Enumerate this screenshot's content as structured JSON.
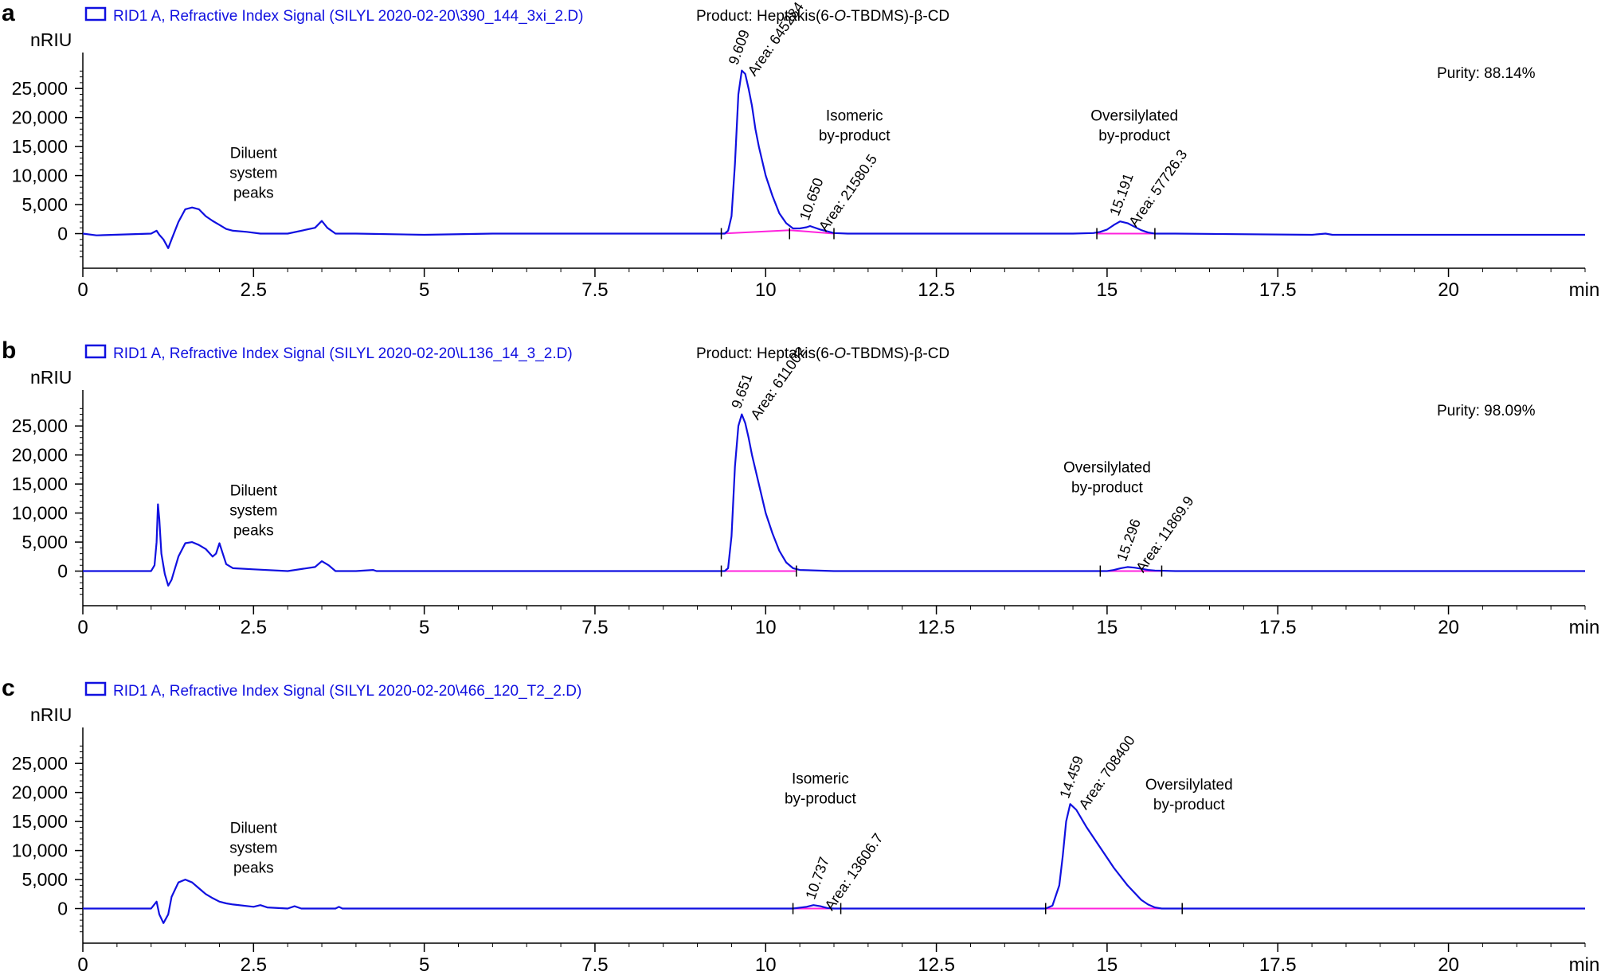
{
  "colors": {
    "signal": "#1010e0",
    "baseline": "#ff22dd",
    "axis": "#000000",
    "text": "#000000"
  },
  "chart_data": [
    {
      "type": "line",
      "panel_label": "a",
      "legend": "RID1 A, Refractive Index Signal (SILYL 2020-02-20\\390_144_3xi_2.D)",
      "product_prefix": "Product: Heptakis(6-",
      "product_italic": "O",
      "product_suffix": "-TBDMS)-β-CD",
      "purity": "Purity: 88.14%",
      "ylabel": "nRIU",
      "xunit": "min",
      "xlim": [
        0,
        22
      ],
      "ylim": [
        -5000,
        29000
      ],
      "xticks": [
        "0",
        "2.5",
        "5",
        "7.5",
        "10",
        "12.5",
        "15",
        "17.5",
        "20"
      ],
      "yticks": [
        "0",
        "5,000",
        "10,000",
        "15,000",
        "20,000",
        "25,000"
      ],
      "notes": [
        {
          "lines": [
            "Diluent",
            "system",
            "peaks"
          ],
          "x": 2.5,
          "y": 13000
        },
        {
          "lines": [
            "Isomeric",
            "by-product"
          ],
          "x": 11.3,
          "y": 19500
        },
        {
          "lines": [
            "Oversilylated",
            "by-product"
          ],
          "x": 15.4,
          "y": 19500
        }
      ],
      "peaks": [
        {
          "rt": "9.609",
          "area": "Area: 645284",
          "x": 9.609,
          "y": 28100
        },
        {
          "rt": "10.650",
          "area": "Area: 21580.5",
          "x": 10.65,
          "y": 1300
        },
        {
          "rt": "15.191",
          "area": "Area: 57726.3",
          "x": 15.191,
          "y": 2100
        }
      ],
      "baselines": [
        {
          "x": [
            9.35,
            10.35,
            11.0
          ],
          "y": [
            0,
            600,
            0
          ]
        },
        {
          "x": [
            14.85,
            15.7
          ],
          "y": [
            0,
            0
          ]
        }
      ],
      "integration_marks": [
        9.35,
        10.35,
        11.0,
        14.85,
        15.7
      ],
      "series": [
        {
          "x": [
            0,
            0.2,
            1.0,
            1.08,
            1.12,
            1.18,
            1.25,
            1.3,
            1.4,
            1.5,
            1.6,
            1.7,
            1.8,
            1.9,
            2.0,
            2.1,
            2.2,
            2.4,
            2.6,
            3.0,
            3.4,
            3.5,
            3.58,
            3.7,
            4.0,
            5.0,
            6.0,
            7.8,
            8.2,
            9.0,
            9.3,
            9.4,
            9.45,
            9.5,
            9.55,
            9.6,
            9.65,
            9.7,
            9.75,
            9.8,
            9.85,
            9.9,
            10.0,
            10.1,
            10.2,
            10.3,
            10.4,
            10.5,
            10.6,
            10.65,
            10.7,
            10.8,
            10.9,
            11.0,
            11.2,
            12.0,
            14.5,
            14.8,
            14.9,
            15.0,
            15.1,
            15.19,
            15.3,
            15.4,
            15.5,
            15.6,
            15.7,
            16.0,
            18.0,
            18.2,
            18.3,
            22.0
          ],
          "y": [
            0,
            -300,
            0,
            500,
            -200,
            -1000,
            -2500,
            -1000,
            2000,
            4200,
            4500,
            4200,
            3000,
            2200,
            1500,
            800,
            500,
            300,
            0,
            0,
            1000,
            2200,
            1000,
            0,
            0,
            -200,
            0,
            0,
            0,
            0,
            0,
            0,
            500,
            3000,
            12000,
            24000,
            28100,
            27500,
            25000,
            22000,
            18000,
            15000,
            10000,
            6500,
            3500,
            1800,
            900,
            900,
            1100,
            1300,
            1100,
            700,
            400,
            100,
            0,
            0,
            0,
            100,
            300,
            700,
            1500,
            2100,
            1800,
            1200,
            600,
            200,
            0,
            0,
            -200,
            0,
            -200,
            -200
          ]
        }
      ]
    },
    {
      "type": "line",
      "panel_label": "b",
      "legend": "RID1 A, Refractive Index Signal (SILYL 2020-02-20\\L136_14_3_2.D)",
      "product_prefix": "Product: Heptakis(6-",
      "product_italic": "O",
      "product_suffix": "-TBDMS)-β-CD",
      "purity": "Purity: 98.09%",
      "ylabel": "nRIU",
      "xunit": "min",
      "xlim": [
        0,
        22
      ],
      "ylim": [
        -5000,
        29000
      ],
      "xticks": [
        "0",
        "2.5",
        "5",
        "7.5",
        "10",
        "12.5",
        "15",
        "17.5",
        "20"
      ],
      "yticks": [
        "0",
        "5,000",
        "10,000",
        "15,000",
        "20,000",
        "25,000"
      ],
      "notes": [
        {
          "lines": [
            "Diluent",
            "system",
            "peaks"
          ],
          "x": 2.5,
          "y": 13000
        },
        {
          "lines": [
            "Oversilylated",
            "by-product"
          ],
          "x": 15.0,
          "y": 17000
        }
      ],
      "peaks": [
        {
          "rt": "9.651",
          "area": "Area: 611002",
          "x": 9.651,
          "y": 27000
        },
        {
          "rt": "15.296",
          "area": "Area: 11869.9",
          "x": 15.296,
          "y": 700
        }
      ],
      "baselines": [
        {
          "x": [
            9.35,
            10.45
          ],
          "y": [
            0,
            0
          ]
        },
        {
          "x": [
            14.9,
            15.8
          ],
          "y": [
            0,
            0
          ]
        }
      ],
      "integration_marks": [
        9.35,
        10.45,
        14.9,
        15.8
      ],
      "series": [
        {
          "x": [
            0,
            1.0,
            1.05,
            1.08,
            1.1,
            1.12,
            1.15,
            1.2,
            1.25,
            1.3,
            1.4,
            1.5,
            1.6,
            1.7,
            1.8,
            1.9,
            1.95,
            2.0,
            2.05,
            2.1,
            2.2,
            2.5,
            3.0,
            3.4,
            3.5,
            3.6,
            3.7,
            4.0,
            4.25,
            4.3,
            5.0,
            9.0,
            9.4,
            9.45,
            9.5,
            9.55,
            9.6,
            9.65,
            9.7,
            9.75,
            9.8,
            9.85,
            9.9,
            10.0,
            10.1,
            10.2,
            10.3,
            10.4,
            10.5,
            11.0,
            15.0,
            15.1,
            15.2,
            15.3,
            15.4,
            15.5,
            15.6,
            15.7,
            16.0,
            22.0
          ],
          "y": [
            0,
            0,
            1000,
            5000,
            11500,
            9000,
            3000,
            -500,
            -2500,
            -1500,
            2500,
            4800,
            5000,
            4500,
            3800,
            2500,
            3000,
            4800,
            3000,
            1200,
            500,
            300,
            0,
            700,
            1700,
            1000,
            0,
            0,
            200,
            0,
            0,
            0,
            0,
            500,
            6000,
            18000,
            25000,
            27000,
            25500,
            23000,
            20000,
            17500,
            15000,
            10000,
            6500,
            3500,
            1500,
            500,
            200,
            0,
            0,
            200,
            500,
            700,
            600,
            400,
            200,
            100,
            0,
            0
          ]
        }
      ]
    },
    {
      "type": "line",
      "panel_label": "c",
      "legend": "RID1 A, Refractive Index Signal (SILYL 2020-02-20\\466_120_T2_2.D)",
      "product_prefix": "",
      "product_italic": "",
      "product_suffix": "",
      "purity": "",
      "ylabel": "nRIU",
      "xunit": "min",
      "xlim": [
        0,
        22
      ],
      "ylim": [
        -5000,
        29000
      ],
      "xticks": [
        "0",
        "2.5",
        "5",
        "7.5",
        "10",
        "12.5",
        "15",
        "17.5",
        "20"
      ],
      "yticks": [
        "0",
        "5,000",
        "10,000",
        "15,000",
        "20,000",
        "25,000"
      ],
      "notes": [
        {
          "lines": [
            "Diluent",
            "system",
            "peaks"
          ],
          "x": 2.5,
          "y": 13000
        },
        {
          "lines": [
            "Isomeric",
            "by-product"
          ],
          "x": 10.8,
          "y": 21500
        },
        {
          "lines": [
            "Oversilylated",
            "by-product"
          ],
          "x": 16.2,
          "y": 20500
        }
      ],
      "peaks": [
        {
          "rt": "10.737",
          "area": "Area: 13606.7",
          "x": 10.737,
          "y": 600
        },
        {
          "rt": "14.459",
          "area": "Area: 708400",
          "x": 14.459,
          "y": 18000
        }
      ],
      "baselines": [
        {
          "x": [
            10.4,
            11.1
          ],
          "y": [
            0,
            0
          ]
        },
        {
          "x": [
            14.1,
            16.1
          ],
          "y": [
            0,
            0
          ]
        }
      ],
      "integration_marks": [
        10.4,
        11.1,
        14.1,
        16.1
      ],
      "series": [
        {
          "x": [
            0,
            1.0,
            1.08,
            1.12,
            1.18,
            1.25,
            1.3,
            1.4,
            1.5,
            1.6,
            1.7,
            1.8,
            1.9,
            2.0,
            2.1,
            2.2,
            2.5,
            2.6,
            2.7,
            3.0,
            3.1,
            3.2,
            3.7,
            3.75,
            3.8,
            5.0,
            10.4,
            10.6,
            10.7,
            10.8,
            10.9,
            11.0,
            14.1,
            14.2,
            14.3,
            14.35,
            14.4,
            14.46,
            14.55,
            14.7,
            14.9,
            15.1,
            15.3,
            15.5,
            15.6,
            15.7,
            15.8,
            16.0,
            22.0
          ],
          "y": [
            0,
            0,
            1200,
            -1000,
            -2500,
            -1000,
            2000,
            4500,
            5000,
            4500,
            3500,
            2500,
            1800,
            1200,
            900,
            700,
            300,
            600,
            200,
            0,
            400,
            0,
            0,
            300,
            0,
            0,
            0,
            300,
            600,
            400,
            100,
            0,
            0,
            500,
            4000,
            9000,
            15000,
            18000,
            17000,
            14000,
            10500,
            7000,
            4000,
            1500,
            700,
            200,
            0,
            0,
            0
          ]
        }
      ]
    }
  ]
}
